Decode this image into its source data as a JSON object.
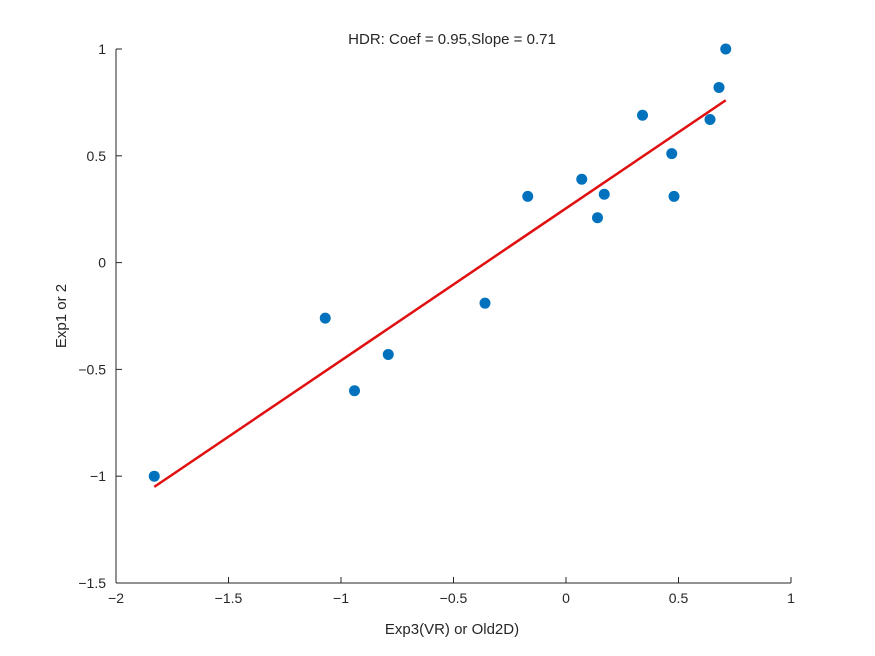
{
  "chart_data": {
    "type": "scatter",
    "title": "HDR: Coef = 0.95,Slope = 0.71",
    "xlabel": "Exp3(VR) or Old2D)",
    "ylabel": "Exp1 or 2",
    "xlim": [
      -2,
      1
    ],
    "ylim": [
      -1.5,
      1
    ],
    "grid": false,
    "legend": "none",
    "x_ticks": [
      "−2",
      "−1.5",
      "−1",
      "−0.5",
      "0",
      "0.5",
      "1"
    ],
    "y_ticks": [
      "−1.5",
      "−1",
      "−0.5",
      "0",
      "0.5",
      "1"
    ],
    "x_tick_values": [
      -2,
      -1.5,
      -1,
      -0.5,
      0,
      0.5,
      1
    ],
    "y_tick_values": [
      -1.5,
      -1,
      -0.5,
      0,
      0.5,
      1
    ],
    "points": {
      "x": [
        -1.83,
        -1.07,
        -0.94,
        -0.79,
        -0.36,
        -0.17,
        0.07,
        0.14,
        0.17,
        0.34,
        0.47,
        0.48,
        0.64,
        0.68,
        0.71
      ],
      "y": [
        -1.0,
        -0.26,
        -0.6,
        -0.43,
        -0.19,
        0.31,
        0.39,
        0.21,
        0.32,
        0.69,
        0.51,
        0.31,
        0.67,
        0.82,
        1.0
      ],
      "color": "#0072BD"
    },
    "fit_line": {
      "x": [
        -1.83,
        0.71
      ],
      "y": [
        -1.05,
        0.76
      ],
      "color": "#E01010"
    }
  }
}
